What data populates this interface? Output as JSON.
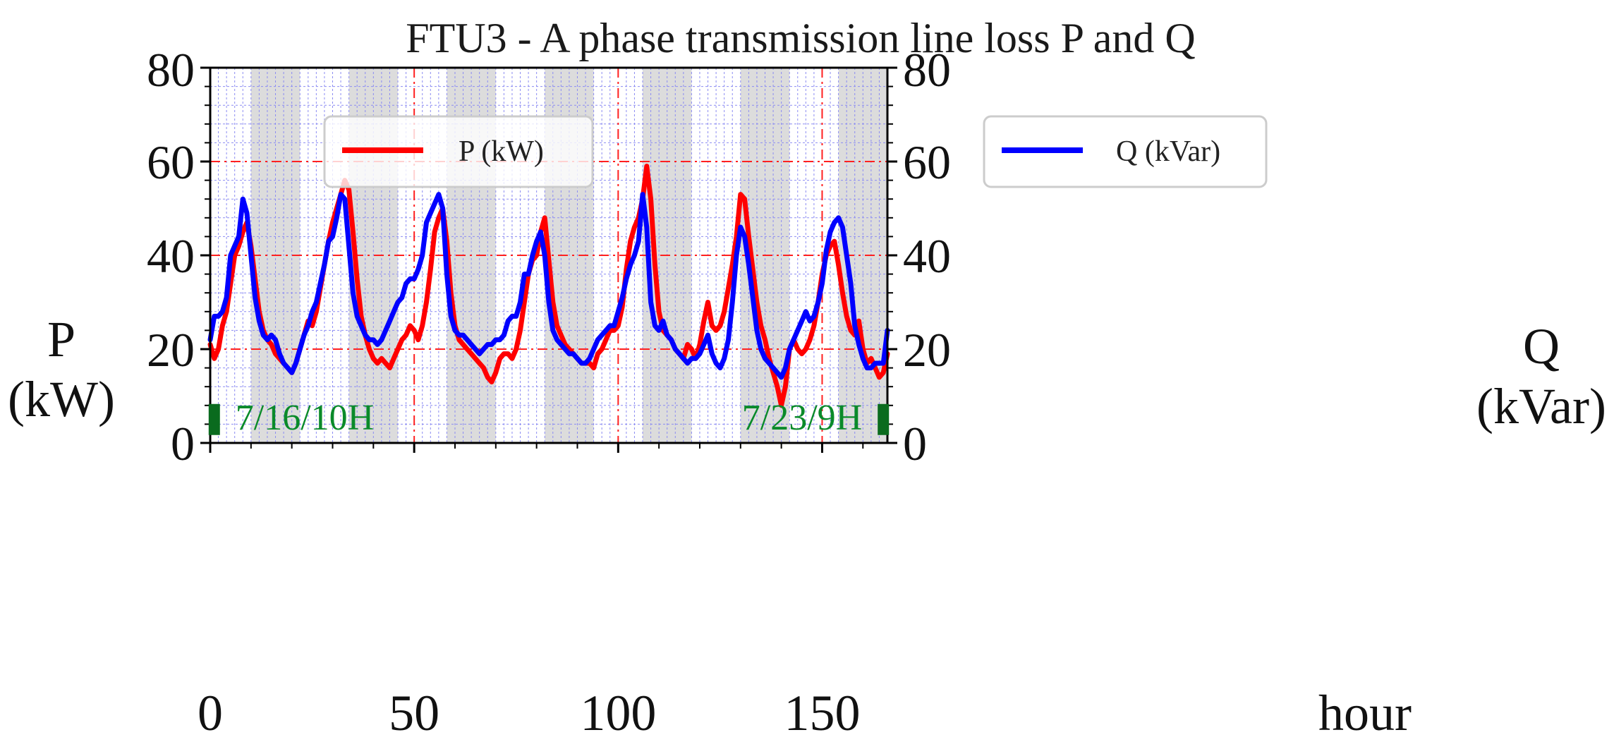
{
  "chart_data": {
    "type": "line",
    "title": "FTU3 - A phase transmission line loss P and Q",
    "xlabel": "hour",
    "ylabel_left_line1": "P",
    "ylabel_left_line2": "(kW)",
    "ylabel_right_line1": "Q",
    "ylabel_right_line2": "(kVar)",
    "xlim": [
      0,
      166
    ],
    "ylim": [
      0,
      80
    ],
    "xticks": [
      0,
      50,
      100,
      150
    ],
    "xtick_labels": [
      "0",
      "50",
      "100",
      "150"
    ],
    "yticks": [
      0,
      20,
      40,
      60,
      80
    ],
    "ytick_labels": [
      "0",
      "20",
      "40",
      "60",
      "80"
    ],
    "grid": true,
    "shaded_hour_ranges": [
      [
        10,
        22
      ],
      [
        34,
        46
      ],
      [
        58,
        70
      ],
      [
        82,
        94
      ],
      [
        106,
        118
      ],
      [
        130,
        142
      ],
      [
        154,
        166
      ]
    ],
    "annotations": [
      {
        "text": "7/16/10H",
        "x": 1,
        "y": 5,
        "align": "left",
        "color": "#0a8a2a"
      },
      {
        "text": "7/23/9H",
        "x": 165,
        "y": 5,
        "align": "right",
        "color": "#0a8a2a"
      }
    ],
    "legend": {
      "left": "P (kW)",
      "right": "Q (kVar)"
    },
    "x": [
      0,
      1,
      2,
      3,
      4,
      5,
      6,
      7,
      8,
      9,
      10,
      11,
      12,
      13,
      14,
      15,
      16,
      17,
      18,
      19,
      20,
      21,
      22,
      23,
      24,
      25,
      26,
      27,
      28,
      29,
      30,
      31,
      32,
      33,
      34,
      35,
      36,
      37,
      38,
      39,
      40,
      41,
      42,
      43,
      44,
      45,
      46,
      47,
      48,
      49,
      50,
      51,
      52,
      53,
      54,
      55,
      56,
      57,
      58,
      59,
      60,
      61,
      62,
      63,
      64,
      65,
      66,
      67,
      68,
      69,
      70,
      71,
      72,
      73,
      74,
      75,
      76,
      77,
      78,
      79,
      80,
      81,
      82,
      83,
      84,
      85,
      86,
      87,
      88,
      89,
      90,
      91,
      92,
      93,
      94,
      95,
      96,
      97,
      98,
      99,
      100,
      101,
      102,
      103,
      104,
      105,
      106,
      107,
      108,
      109,
      110,
      111,
      112,
      113,
      114,
      115,
      116,
      117,
      118,
      119,
      120,
      121,
      122,
      123,
      124,
      125,
      126,
      127,
      128,
      129,
      130,
      131,
      132,
      133,
      134,
      135,
      136,
      137,
      138,
      139,
      140,
      141,
      142,
      143,
      144,
      145,
      146,
      147,
      148,
      149,
      150,
      151,
      152,
      153,
      154,
      155,
      156,
      157,
      158,
      159,
      160,
      161,
      162,
      163,
      164,
      165,
      166
    ],
    "series": [
      {
        "name": "P (kW)",
        "color": "#ff0000",
        "values": [
          21,
          18,
          20,
          25,
          28,
          34,
          40,
          42,
          45,
          47,
          42,
          35,
          28,
          24,
          22,
          21,
          19,
          18,
          17,
          16,
          15,
          17,
          20,
          23,
          26,
          25,
          28,
          33,
          38,
          43,
          47,
          50,
          53,
          56,
          54,
          45,
          35,
          27,
          23,
          20,
          18,
          17,
          18,
          17,
          16,
          18,
          20,
          22,
          23,
          25,
          24,
          22,
          25,
          30,
          37,
          45,
          48,
          50,
          43,
          32,
          25,
          22,
          21,
          20,
          19,
          18,
          17,
          16,
          14,
          13,
          15,
          18,
          19,
          19,
          18,
          20,
          24,
          30,
          36,
          39,
          40,
          45,
          48,
          39,
          30,
          25,
          23,
          21,
          20,
          19,
          18,
          17,
          17,
          17,
          16,
          19,
          20,
          22,
          24,
          24,
          25,
          29,
          37,
          43,
          46,
          48,
          52,
          59,
          52,
          38,
          28,
          24,
          23,
          22,
          20,
          19,
          18,
          21,
          20,
          18,
          21,
          26,
          30,
          25,
          24,
          25,
          28,
          33,
          38,
          44,
          53,
          52,
          44,
          37,
          30,
          25,
          22,
          18,
          15,
          12,
          8,
          12,
          20,
          22,
          20,
          19,
          20,
          22,
          25,
          30,
          36,
          40,
          42,
          43,
          38,
          32,
          27,
          24,
          23,
          26,
          20,
          17,
          18,
          16,
          14,
          15,
          19
        ]
      },
      {
        "name": "Q (kVar)",
        "color": "#0000ff",
        "values": [
          22,
          27,
          27,
          28,
          31,
          40,
          42,
          44,
          52,
          49,
          40,
          31,
          26,
          23,
          22,
          23,
          22,
          19,
          17,
          16,
          15,
          17,
          20,
          23,
          25,
          28,
          30,
          34,
          38,
          43,
          44,
          48,
          53,
          52,
          42,
          32,
          27,
          25,
          23,
          22,
          22,
          21,
          22,
          24,
          26,
          28,
          30,
          31,
          34,
          35,
          35,
          37,
          40,
          47,
          49,
          51,
          53,
          50,
          36,
          27,
          24,
          23,
          23,
          22,
          21,
          20,
          19,
          20,
          21,
          21,
          22,
          22,
          23,
          26,
          27,
          27,
          30,
          36,
          36,
          40,
          43,
          45,
          40,
          30,
          24,
          22,
          21,
          20,
          19,
          19,
          18,
          17,
          17,
          18,
          20,
          22,
          23,
          24,
          25,
          25,
          28,
          31,
          35,
          38,
          40,
          43,
          53,
          46,
          30,
          25,
          24,
          26,
          23,
          22,
          20,
          19,
          18,
          17,
          18,
          18,
          19,
          21,
          23,
          19,
          17,
          16,
          18,
          22,
          30,
          40,
          46,
          44,
          38,
          31,
          24,
          20,
          18,
          17,
          16,
          15,
          14,
          16,
          20,
          22,
          24,
          26,
          28,
          26,
          27,
          30,
          34,
          41,
          45,
          47,
          48,
          46,
          40,
          34,
          25,
          21,
          18,
          16,
          16,
          17,
          17,
          17,
          24
        ]
      }
    ]
  }
}
